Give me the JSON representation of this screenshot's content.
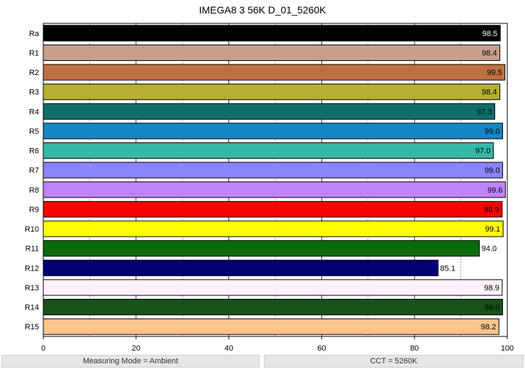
{
  "chart_data": {
    "type": "bar",
    "orientation": "horizontal",
    "title": "IMEGA8 3 56K D_01_5260K",
    "categories": [
      "Ra",
      "R1",
      "R2",
      "R3",
      "R4",
      "R5",
      "R6",
      "R7",
      "R8",
      "R9",
      "R10",
      "R11",
      "R12",
      "R13",
      "R14",
      "R15"
    ],
    "values": [
      98.5,
      98.4,
      99.5,
      98.4,
      97.3,
      99.0,
      97.0,
      99.0,
      99.6,
      98.9,
      99.1,
      94.0,
      85.1,
      98.9,
      99.0,
      98.2
    ],
    "value_labels": [
      "98.5",
      "98.4",
      "99.5",
      "98.4",
      "97.3",
      "99.0",
      "97.0",
      "99.0",
      "99.6",
      "98.9",
      "99.1",
      "94.0",
      "85.1",
      "98.9",
      "99.0",
      "98.2"
    ],
    "colors": [
      "#000000",
      "#c89e8a",
      "#bf7042",
      "#b5b030",
      "#0f6e6b",
      "#1487c4",
      "#36b8a7",
      "#8a84ff",
      "#c083ff",
      "#ff0000",
      "#ffff00",
      "#0b6b0b",
      "#000073",
      "#fff0fb",
      "#185218",
      "#ffc48a"
    ],
    "label_colors": [
      "#ffffff",
      "#000000",
      "#000000",
      "#000000",
      "#000000",
      "#000000",
      "#000000",
      "#000000",
      "#000000",
      "#000000",
      "#000000",
      "#000000",
      "#000000",
      "#000000",
      "#000000",
      "#000000"
    ],
    "xlim": [
      0,
      100
    ],
    "xticks": [
      0,
      20,
      40,
      60,
      80,
      100
    ],
    "grid": true,
    "xlabel": "",
    "ylabel": ""
  },
  "footer": {
    "left": "Measuring Mode = Ambient",
    "right": "CCT = 5260K"
  }
}
